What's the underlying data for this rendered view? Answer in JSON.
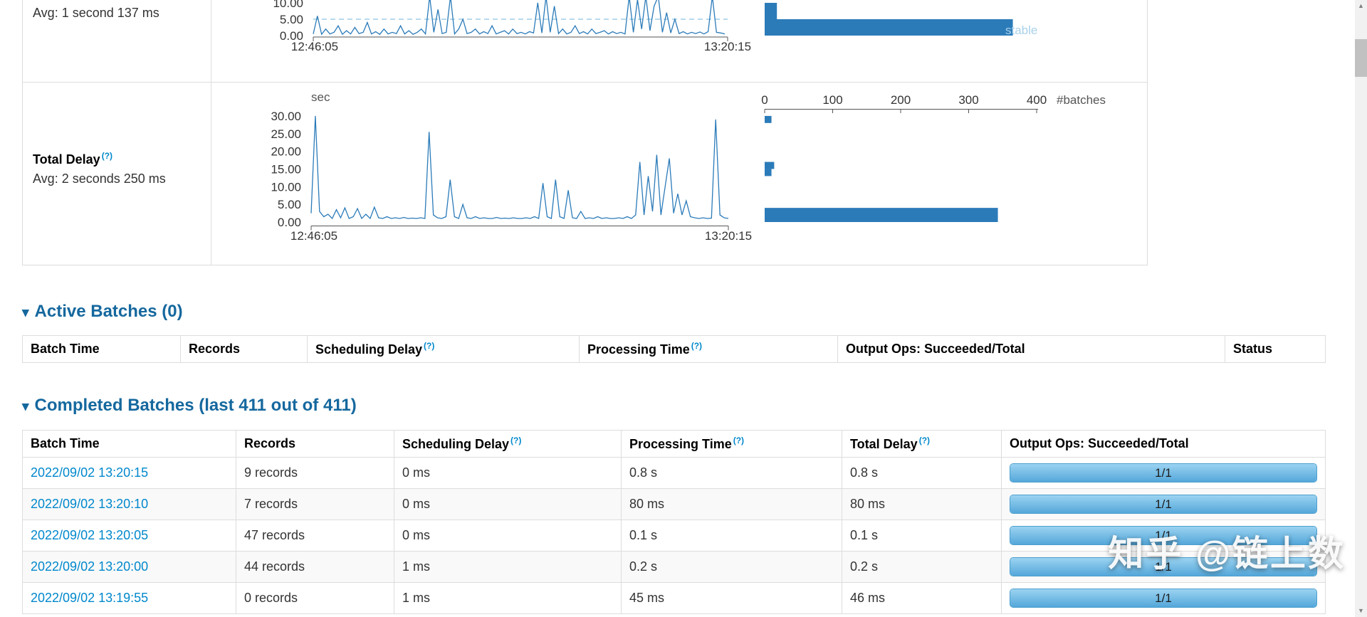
{
  "colors": {
    "chart_blue": "#2b7bb9",
    "stable_blue": "#9fcde6",
    "link": "#0088cc",
    "section_title": "#15689e"
  },
  "sections": {
    "arrow": "▾",
    "active_title": "Active Batches (0)",
    "completed_title": "Completed Batches (last 411 out of 411)"
  },
  "chart_data": [
    {
      "id": "processing-time-partial",
      "type": "line",
      "avg_label": "Avg: 1 second 137 ms",
      "x_range": [
        "12:46:05",
        "13:20:15"
      ],
      "yticks": [
        10,
        5,
        0
      ],
      "stable_threshold": 5,
      "stable_label": "stable",
      "values": [
        0.5,
        6,
        0.4,
        2,
        0.5,
        1,
        3,
        0.4,
        1.5,
        0.5,
        2.5,
        0.6,
        1,
        4,
        0.5,
        1.2,
        0.4,
        2,
        0.5,
        1,
        0.6,
        3,
        0.5,
        1.5,
        0.4,
        1,
        2,
        0.5,
        12,
        1,
        8,
        0.6,
        1,
        12,
        0.5,
        2,
        5,
        0.6,
        1,
        2,
        0.5,
        1.2,
        0.6,
        3,
        0.5,
        1,
        1.5,
        0.5,
        2,
        0.6,
        1,
        0.5,
        1.2,
        0.8,
        10,
        0.8,
        12,
        1,
        9,
        0.6,
        2,
        0.5,
        1,
        3,
        0.6,
        1.2,
        0.5,
        2,
        0.6,
        1,
        1.5,
        0.5,
        1.2,
        0.6,
        1,
        0.5,
        12,
        1,
        11,
        2,
        12,
        1.5,
        9,
        12,
        1,
        7,
        0.8,
        5,
        0.6,
        1.2,
        0.5,
        1,
        0.6,
        1.1,
        0.5,
        1.2,
        12,
        1,
        0.8,
        0.5
      ],
      "histogram": {
        "bins": [
          {
            "low": 5,
            "high": 10,
            "count": 18
          },
          {
            "low": 0,
            "high": 5,
            "count": 365
          }
        ]
      }
    },
    {
      "id": "total-delay",
      "type": "line",
      "title": "Total Delay",
      "help": "(?)",
      "avg_label": "Avg: 2 seconds 250 ms",
      "unit": "sec",
      "x_range": [
        "12:46:05",
        "13:20:15"
      ],
      "yticks": [
        30,
        25,
        20,
        15,
        10,
        5,
        0
      ],
      "ylim": [
        0,
        30
      ],
      "values": [
        2.5,
        30,
        3,
        1.5,
        2.2,
        1,
        3.5,
        1.2,
        4,
        1,
        1.5,
        3.8,
        1,
        2.2,
        1,
        4.2,
        1.2,
        1,
        1.5,
        1,
        1.2,
        1,
        1.3,
        1,
        1.1,
        1,
        1.2,
        1,
        25.5,
        2,
        1.2,
        1,
        1.5,
        12,
        1.5,
        1,
        5,
        1.2,
        1,
        1.5,
        1,
        1.2,
        1,
        1,
        1.3,
        1,
        1.1,
        1,
        1.2,
        1,
        1,
        1.2,
        1,
        1.5,
        1,
        11,
        1.5,
        1,
        12,
        1.5,
        1,
        9,
        1.2,
        1,
        3,
        1,
        1.2,
        1,
        1.5,
        1,
        1.2,
        1,
        1,
        1.2,
        1,
        1.5,
        1,
        2,
        17,
        2,
        13,
        3,
        19,
        2,
        10,
        18,
        2.5,
        8,
        2,
        6,
        1.5,
        1.2,
        1,
        1.2,
        1,
        1.1,
        29,
        2,
        1.2,
        1
      ],
      "histogram": {
        "axis_ticks": [
          0,
          100,
          200,
          300,
          400
        ],
        "label": "#batches",
        "bins": [
          {
            "low": 28,
            "high": 30,
            "count": 10
          },
          {
            "low": 15,
            "high": 17,
            "count": 14
          },
          {
            "low": 13,
            "high": 15,
            "count": 10
          },
          {
            "low": 0,
            "high": 4,
            "count": 343
          }
        ]
      }
    }
  ],
  "active_table": {
    "headers": [
      {
        "label": "Batch Time"
      },
      {
        "label": "Records"
      },
      {
        "label": "Scheduling Delay",
        "help": "(?)"
      },
      {
        "label": "Processing Time",
        "help": "(?)"
      },
      {
        "label": "Output Ops: Succeeded/Total"
      },
      {
        "label": "Status"
      }
    ],
    "rows": []
  },
  "completed_table": {
    "headers": [
      {
        "label": "Batch Time"
      },
      {
        "label": "Records"
      },
      {
        "label": "Scheduling Delay",
        "help": "(?)"
      },
      {
        "label": "Processing Time",
        "help": "(?)"
      },
      {
        "label": "Total Delay",
        "help": "(?)"
      },
      {
        "label": "Output Ops: Succeeded/Total"
      }
    ],
    "rows": [
      {
        "batch_time": "2022/09/02 13:20:15",
        "records": "9 records",
        "scheduling_delay": "0 ms",
        "processing_time": "0.8 s",
        "total_delay": "0.8 s",
        "output_ops": "1/1"
      },
      {
        "batch_time": "2022/09/02 13:20:10",
        "records": "7 records",
        "scheduling_delay": "0 ms",
        "processing_time": "80 ms",
        "total_delay": "80 ms",
        "output_ops": "1/1"
      },
      {
        "batch_time": "2022/09/02 13:20:05",
        "records": "47 records",
        "scheduling_delay": "0 ms",
        "processing_time": "0.1 s",
        "total_delay": "0.1 s",
        "output_ops": "1/1"
      },
      {
        "batch_time": "2022/09/02 13:20:00",
        "records": "44 records",
        "scheduling_delay": "1 ms",
        "processing_time": "0.2 s",
        "total_delay": "0.2 s",
        "output_ops": "1/1"
      },
      {
        "batch_time": "2022/09/02 13:19:55",
        "records": "0 records",
        "scheduling_delay": "1 ms",
        "processing_time": "45 ms",
        "total_delay": "46 ms",
        "output_ops": "1/1"
      }
    ]
  },
  "watermark": "知乎 @链上数",
  "scrollbar": {
    "up_icon": "▲",
    "down_icon": "▼"
  }
}
